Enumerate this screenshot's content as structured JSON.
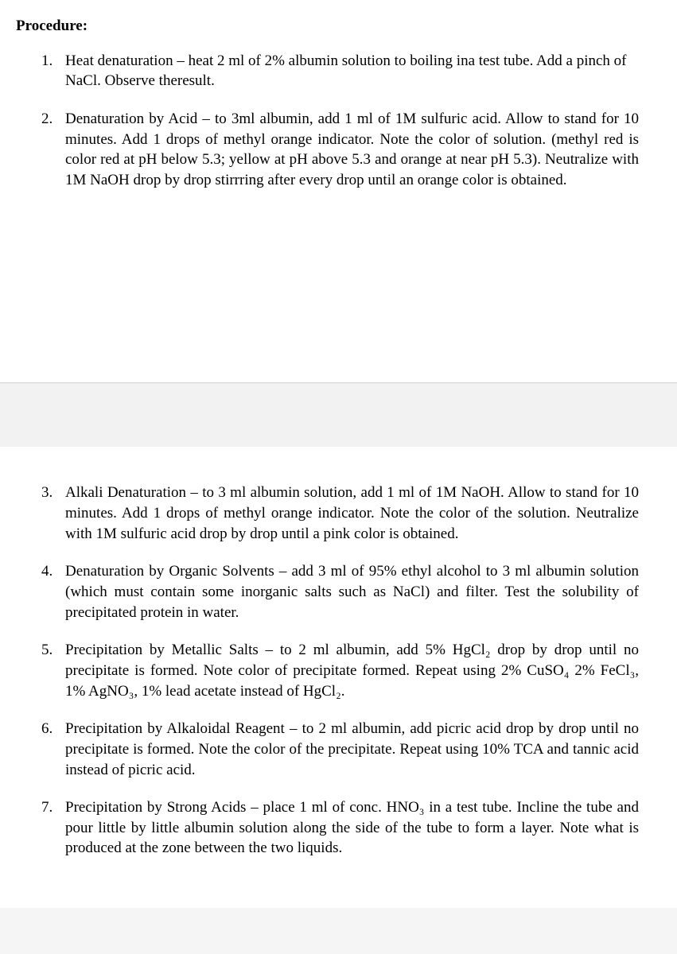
{
  "heading": "Procedure:",
  "items": [
    {
      "num": "1.",
      "text": "Heat denaturation – heat 2 ml of 2% albumin solution to boiling  ina test tube. Add a pinch of NaCl. Observe  theresult.",
      "align": "left"
    },
    {
      "num": "2.",
      "text": "Denaturation by Acid – to 3ml albumin, add 1 ml of 1M sulfuric acid. Allow to stand for 10 minutes. Add 1 drops of methyl orange indicator. Note the color of solution. (methyl red is color red at pH below 5.3; yellow at pH above 5.3 and orange at near pH 5.3). Neutralize with 1M NaOH drop by drop stirrring after every drop until an orange color is obtained.",
      "align": "justify"
    },
    {
      "num": "3.",
      "text": "Alkali Denaturation –  to 3 ml albumin solution, add 1 ml of 1M NaOH. Allow to stand for 10 minutes. Add 1 drops of methyl orange indicator. Note the color of the solution. Neutralize with 1M sulfuric acid drop by drop until a pink color is obtained.",
      "align": "justify"
    },
    {
      "num": "4.",
      "text": "Denaturation by Organic Solvents – add 3 ml of 95% ethyl alcohol to 3 ml albumin solution (which must contain some inorganic salts such as NaCl) and filter. Test the solubility of precipitated protein in water.",
      "align": "justify"
    },
    {
      "num": "5.",
      "text": "Precipitation by Metallic Salts – to 2 ml albumin, add 5% HgCl₂ drop by drop until no precipitate is formed.  Note color of precipitate formed.  Repeat using 2% CuSO₄ 2% FeCl₃, 1% AgNO₃, 1% lead acetate instead of HgCl₂.",
      "align": "justify"
    },
    {
      "num": "6.",
      "text": "Precipitation by Alkaloidal Reagent – to 2 ml albumin, add picric acid drop by drop until no precipitate is formed. Note the color  of the precipitate. Repeat using 10% TCA and tannic acid instead of picric acid.",
      "align": "justify"
    },
    {
      "num": "7.",
      "text": "Precipitation by Strong Acids – place 1 ml of conc. HNO₃ in a test tube. Incline the tube and pour little by little albumin solution along the side of the tube to form a layer. Note what is produced at the zone between the two liquids.",
      "align": "justify"
    }
  ]
}
